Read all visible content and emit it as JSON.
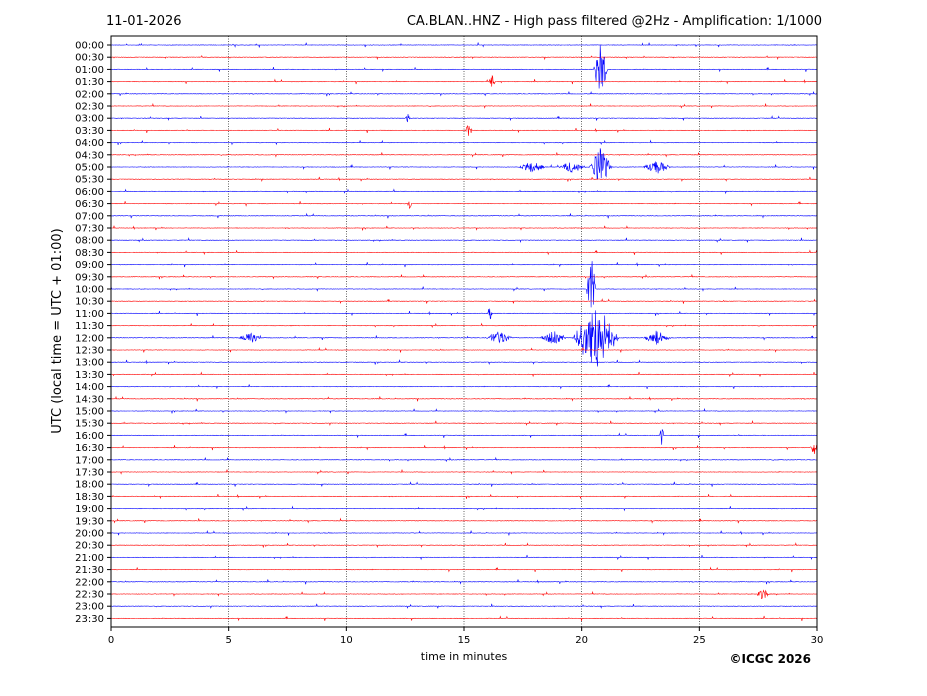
{
  "header": {
    "date": "11-01-2026",
    "title": "CA.BLAN..HNZ - High pass filtered @2Hz - Amplification: 1/1000"
  },
  "footer": {
    "credit": "©ICGC 2026"
  },
  "chart_data": {
    "type": "line",
    "title": "CA.BLAN..HNZ - High pass filtered @2Hz - Amplification: 1/1000",
    "xlabel": "time in minutes",
    "ylabel": "UTC (local time = UTC + 01:00)",
    "xlim": [
      0,
      30
    ],
    "xticks": [
      0,
      5,
      10,
      15,
      20,
      25,
      30
    ],
    "grid": "vertical dotted at 5,10,15,20,25",
    "row_labels": [
      "00:00",
      "00:30",
      "01:00",
      "01:30",
      "02:00",
      "02:30",
      "03:00",
      "03:30",
      "04:00",
      "04:30",
      "05:00",
      "05:30",
      "06:00",
      "06:30",
      "07:00",
      "07:30",
      "08:00",
      "08:30",
      "09:00",
      "09:30",
      "10:00",
      "10:30",
      "11:00",
      "11:30",
      "12:00",
      "12:30",
      "13:00",
      "13:30",
      "14:00",
      "14:30",
      "15:00",
      "15:30",
      "16:00",
      "16:30",
      "17:00",
      "17:30",
      "18:00",
      "18:30",
      "19:00",
      "19:30",
      "20:00",
      "20:30",
      "21:00",
      "21:30",
      "22:00",
      "22:30",
      "23:00",
      "23:30"
    ],
    "trace_colors": [
      "#0000ff",
      "#ff0000"
    ],
    "events": [
      {
        "row": 2,
        "minute": 20.8,
        "amp": 2.6,
        "dur": 0.3
      },
      {
        "row": 3,
        "minute": 16.2,
        "amp": 0.6,
        "dur": 0.15
      },
      {
        "row": 6,
        "minute": 12.6,
        "amp": 0.5,
        "dur": 0.1
      },
      {
        "row": 7,
        "minute": 15.2,
        "amp": 0.6,
        "dur": 0.15
      },
      {
        "row": 10,
        "minute": 17.9,
        "amp": 0.5,
        "dur": 0.6
      },
      {
        "row": 10,
        "minute": 19.6,
        "amp": 0.5,
        "dur": 0.6
      },
      {
        "row": 10,
        "minute": 20.8,
        "amp": 1.6,
        "dur": 0.5
      },
      {
        "row": 10,
        "minute": 23.2,
        "amp": 0.7,
        "dur": 0.6
      },
      {
        "row": 13,
        "minute": 12.7,
        "amp": 0.8,
        "dur": 0.1
      },
      {
        "row": 24,
        "minute": 5.9,
        "amp": 0.5,
        "dur": 0.5
      },
      {
        "row": 24,
        "minute": 16.5,
        "amp": 0.6,
        "dur": 0.6
      },
      {
        "row": 24,
        "minute": 18.8,
        "amp": 0.6,
        "dur": 0.6
      },
      {
        "row": 24,
        "minute": 20.6,
        "amp": 3.0,
        "dur": 1.0
      },
      {
        "row": 24,
        "minute": 23.2,
        "amp": 0.6,
        "dur": 0.6
      },
      {
        "row": 20,
        "minute": 20.4,
        "amp": 3.5,
        "dur": 0.2
      },
      {
        "row": 22,
        "minute": 16.1,
        "amp": 0.7,
        "dur": 0.1
      },
      {
        "row": 32,
        "minute": 23.4,
        "amp": 0.9,
        "dur": 0.1
      },
      {
        "row": 33,
        "minute": 29.9,
        "amp": 0.7,
        "dur": 0.2
      },
      {
        "row": 45,
        "minute": 27.7,
        "amp": 0.5,
        "dur": 0.3
      }
    ]
  }
}
